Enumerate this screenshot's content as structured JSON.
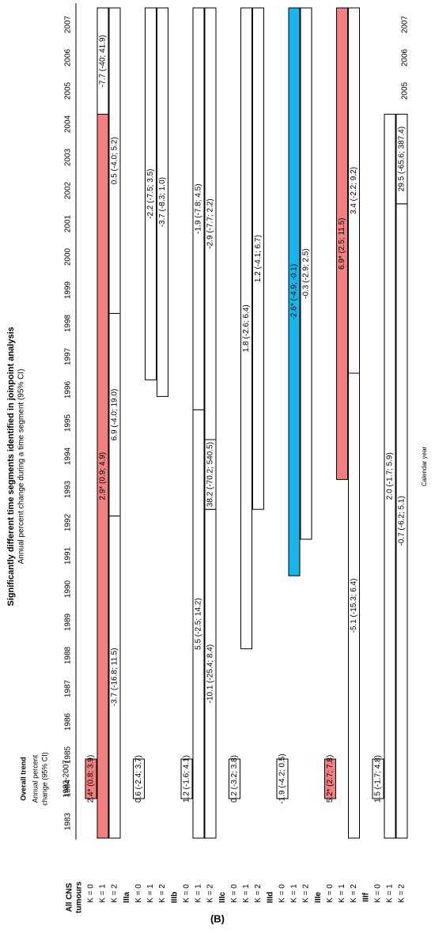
{
  "chart_data": {
    "type": "segments",
    "title": "Significantly different time segments identified in joinpoint analysis",
    "subtitle": "Annual percent change during a time segment (95% CI)",
    "x_label": "Calendar year",
    "overall_header": "Overall trend",
    "overall_subheader": [
      "Annual percent",
      "change (95% CI)"
    ],
    "overall_period": "1983-2007",
    "panel_label": "(B)",
    "xlim": [
      1982.5,
      2007.5
    ],
    "xticks": [
      1983,
      1984,
      1985,
      1986,
      1987,
      1988,
      1989,
      1990,
      1991,
      1992,
      1993,
      1994,
      1995,
      1996,
      1997,
      1998,
      1999,
      2000,
      2001,
      2002,
      2003,
      2004,
      2005,
      2006,
      2007
    ],
    "groups": [
      {
        "name": [
          "All CNS",
          "tumours"
        ],
        "rows": [
          {
            "name": "K = 0",
            "overall": {
              "label": "2.4* (0.8; 3.9)",
              "color": "#f47f80"
            },
            "segments": []
          },
          {
            "name": "K = 1",
            "segments": [
              {
                "start": 1982.5,
                "end": 2004.3,
                "label": "2.9* (0.9; 4.9)",
                "color": "#f47f80"
              },
              {
                "start": 2004.3,
                "end": 2007.5,
                "label": "-7.7 (-40; 41.9)",
                "color": "#ffffff"
              }
            ]
          },
          {
            "name": "K = 2",
            "segments": [
              {
                "start": 1982.5,
                "end": 1992.2,
                "label": "-3.7 (-16.8; 11.5)",
                "color": "#ffffff"
              },
              {
                "start": 1992.2,
                "end": 1998.3,
                "label": "6.9 (-4.0; 19.0)",
                "color": "#ffffff"
              },
              {
                "start": 1998.3,
                "end": 2007.5,
                "label": "0.5 (-4.0; 5.2)",
                "color": "#ffffff"
              }
            ]
          }
        ]
      },
      {
        "name": [
          "IIIa"
        ],
        "rows": [
          {
            "name": "K = 0",
            "overall": {
              "label": "0.6 (-2.4; 3.7)",
              "color": "#ffffff"
            },
            "segments": []
          },
          {
            "name": "K = 1",
            "segments": [
              {
                "start": 1996.3,
                "end": 2007.5,
                "label": "-2.2 (-7.5; 3.5)",
                "color": "#ffffff"
              }
            ]
          },
          {
            "name": "K = 2",
            "segments": [
              {
                "start": 1995.8,
                "end": 2007.5,
                "label": "-3.7 (-8.3; 1.0)",
                "color": "#ffffff"
              }
            ]
          }
        ]
      },
      {
        "name": [
          "IIIb"
        ],
        "rows": [
          {
            "name": "K = 0",
            "overall": {
              "label": "1.2 (-1.6; 4.1)",
              "color": "#ffffff"
            },
            "segments": []
          },
          {
            "name": "K = 1",
            "segments": [
              {
                "start": 1982.5,
                "end": 1995.4,
                "label": "5.5 (-2.5; 14.2)",
                "color": "#ffffff"
              },
              {
                "start": 1995.4,
                "end": 2007.5,
                "label": "-1.9 (-7.8; 4.5)",
                "color": "#ffffff"
              }
            ]
          },
          {
            "name": "K = 2",
            "segments": [
              {
                "start": 1982.5,
                "end": 1992.4,
                "label": "-10.1 (-25.4; 8.4)",
                "color": "#ffffff"
              },
              {
                "start": 1992.4,
                "end": 1994.5,
                "label": "38.2 (-70.2; 540.5)",
                "color": "#ffffff"
              },
              {
                "start": 1994.5,
                "end": 2007.5,
                "label": "-2.9 (-7.7; 2.2)",
                "color": "#ffffff"
              }
            ]
          }
        ]
      },
      {
        "name": [
          "IIIc"
        ],
        "rows": [
          {
            "name": "K = 0",
            "overall": {
              "label": "0.2 (-3.2; 3.8)",
              "color": "#ffffff"
            },
            "segments": []
          },
          {
            "name": "K = 1",
            "segments": [
              {
                "start": 1988.2,
                "end": 2007.5,
                "label": "1.8 (-2.6; 6.4)",
                "color": "#ffffff"
              }
            ]
          },
          {
            "name": "K = 2",
            "segments": [
              {
                "start": 1992.4,
                "end": 2007.5,
                "label": "1.2 (-4.1; 6.7)",
                "color": "#ffffff"
              }
            ]
          }
        ]
      },
      {
        "name": [
          "IIId"
        ],
        "rows": [
          {
            "name": "K = 0",
            "overall": {
              "label": "-1.9 (-4.2; 0.5)",
              "color": "#ffffff"
            },
            "segments": []
          },
          {
            "name": "K = 1",
            "segments": [
              {
                "start": 1990.4,
                "end": 2007.5,
                "label": "-2.6* (-4.9; -0.1)",
                "color": "#19b4ec"
              }
            ]
          },
          {
            "name": "K = 2",
            "segments": [
              {
                "start": 1991.5,
                "end": 2007.5,
                "label": "-0.3 (-2.9; 2.5)",
                "color": "#ffffff"
              }
            ]
          }
        ]
      },
      {
        "name": [
          "IIIe"
        ],
        "rows": [
          {
            "name": "K = 0",
            "overall": {
              "label": "5.2* (2.7; 7.8)",
              "color": "#f47f80"
            },
            "segments": []
          },
          {
            "name": "K = 1",
            "segments": [
              {
                "start": 1993.3,
                "end": 2007.5,
                "label": "6.9* (2.5; 11.5)",
                "color": "#f47f80"
              }
            ]
          },
          {
            "name": "K = 2",
            "segments": [
              {
                "start": 1982.5,
                "end": 1996.5,
                "label": "-5.1 (-15.3; 6.4)",
                "color": "#ffffff"
              },
              {
                "start": 1996.5,
                "end": 2007.5,
                "label": "3.4 (-2.2; 9.2)",
                "color": "#ffffff"
              }
            ]
          }
        ]
      },
      {
        "name": [
          "IIIf"
        ],
        "rows": [
          {
            "name": "K = 0",
            "overall": {
              "label": "1.5 (-1.7; 4.8)",
              "color": "#ffffff"
            },
            "segments": []
          },
          {
            "name": "K = 1",
            "segments": [
              {
                "start": 1982.5,
                "end": 2004.3,
                "label": "2.0 (-1.7; 5.9)",
                "color": "#ffffff"
              }
            ]
          },
          {
            "name": "K = 2",
            "segments": [
              {
                "start": 1982.5,
                "end": 2001.6,
                "label": "-0.7 (-6.2; 5.1)",
                "color": "#ffffff"
              },
              {
                "start": 2001.6,
                "end": 2004.3,
                "label": "29.5 (-65.6; 387.4)",
                "color": "#ffffff"
              }
            ]
          }
        ]
      }
    ]
  }
}
